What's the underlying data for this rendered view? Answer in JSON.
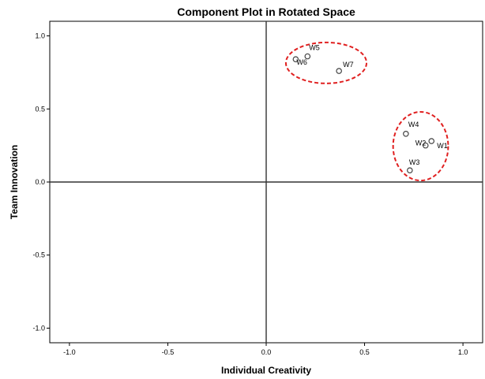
{
  "chart_data": {
    "type": "scatter",
    "title": "Component Plot in Rotated Space",
    "xlabel": "Individual Creativity",
    "ylabel": "Team Innovation",
    "xlim": [
      -1.1,
      1.1
    ],
    "ylim": [
      -1.1,
      1.1
    ],
    "xticks": [
      -1.0,
      -0.5,
      0.0,
      0.5,
      1.0
    ],
    "yticks": [
      -1.0,
      -0.5,
      0.0,
      0.5,
      1.0
    ],
    "xtick_labels": [
      "-1.0",
      "-0.5",
      "0.0",
      "0.5",
      "1.0"
    ],
    "ytick_labels": [
      "-1.0",
      "-0.5",
      "0.0",
      "0.5",
      "1.0"
    ],
    "grid": false,
    "reference_lines": {
      "x": 0.0,
      "y": 0.0
    },
    "points": [
      {
        "label": "W1",
        "x": 0.84,
        "y": 0.28
      },
      {
        "label": "W2",
        "x": 0.81,
        "y": 0.25
      },
      {
        "label": "W3",
        "x": 0.73,
        "y": 0.08
      },
      {
        "label": "W4",
        "x": 0.71,
        "y": 0.33
      },
      {
        "label": "W5",
        "x": 0.21,
        "y": 0.86
      },
      {
        "label": "W6",
        "x": 0.15,
        "y": 0.84
      },
      {
        "label": "W7",
        "x": 0.37,
        "y": 0.76
      }
    ],
    "annotations": [
      {
        "shape": "ellipse",
        "cx": 0.305,
        "cy": 0.815,
        "rx": 0.205,
        "ry": 0.14,
        "style": "dashed",
        "color": "#e02020"
      },
      {
        "shape": "ellipse",
        "cx": 0.785,
        "cy": 0.245,
        "rx": 0.14,
        "ry": 0.235,
        "style": "dashed",
        "color": "#e02020"
      }
    ],
    "colors": {
      "axis": "#000000",
      "reference_line": "#333333",
      "marker": "#444444",
      "annotation": "#e02020"
    }
  }
}
